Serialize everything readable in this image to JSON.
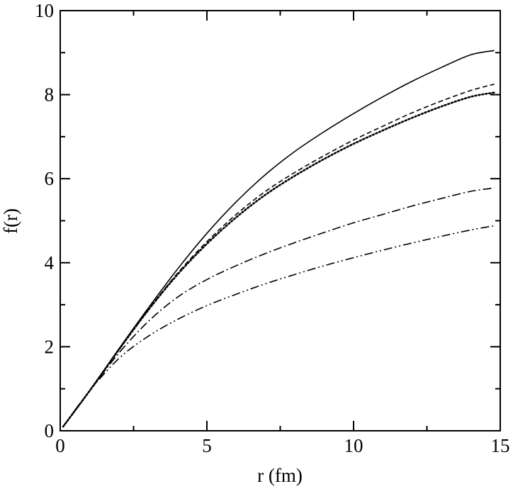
{
  "chart_data": {
    "type": "line",
    "title": "",
    "xlabel": "r (fm)",
    "ylabel": "f(r)",
    "xlim": [
      0,
      15
    ],
    "ylim": [
      0,
      10
    ],
    "x_ticks": [
      0,
      5,
      10,
      15
    ],
    "y_ticks": [
      0,
      2,
      4,
      6,
      8,
      10
    ],
    "x_tick_labels": [
      "0",
      "5",
      "10",
      "15"
    ],
    "y_tick_labels": [
      "0",
      "2",
      "4",
      "6",
      "8",
      "10"
    ],
    "grid": false,
    "legend": "none",
    "series": [
      {
        "style": "solid",
        "color": "#000000",
        "x": [
          0.1,
          1,
          2,
          3,
          4,
          5,
          6,
          7,
          8,
          9,
          10,
          11,
          12,
          13,
          14,
          14.8
        ],
        "y": [
          0.1,
          0.95,
          1.95,
          2.92,
          3.85,
          4.7,
          5.45,
          6.1,
          6.65,
          7.12,
          7.55,
          7.95,
          8.32,
          8.65,
          8.95,
          9.05
        ]
      },
      {
        "style": "dashed",
        "color": "#000000",
        "x": [
          0.1,
          1,
          2,
          3,
          4,
          5,
          6,
          7,
          8,
          9,
          10,
          11,
          12,
          13,
          14,
          14.8
        ],
        "y": [
          0.1,
          0.95,
          1.93,
          2.88,
          3.75,
          4.5,
          5.15,
          5.7,
          6.15,
          6.55,
          6.92,
          7.25,
          7.57,
          7.85,
          8.1,
          8.25
        ]
      },
      {
        "style": "dotted",
        "color": "#000000",
        "x": [
          0.1,
          1,
          2,
          3,
          4,
          5,
          6,
          7,
          8,
          9,
          10,
          11,
          12,
          13,
          14,
          14.8
        ],
        "y": [
          0.1,
          0.95,
          1.93,
          2.87,
          3.72,
          4.45,
          5.08,
          5.62,
          6.07,
          6.47,
          6.83,
          7.15,
          7.45,
          7.72,
          7.95,
          8.05
        ]
      },
      {
        "style": "dash-dot",
        "color": "#000000",
        "x": [
          0.1,
          1,
          2,
          3,
          4,
          5,
          6,
          7,
          8,
          9,
          10,
          11,
          12,
          13,
          14,
          14.8
        ],
        "y": [
          0.1,
          0.95,
          1.85,
          2.6,
          3.18,
          3.6,
          3.93,
          4.22,
          4.48,
          4.72,
          4.95,
          5.15,
          5.35,
          5.53,
          5.7,
          5.78
        ]
      },
      {
        "style": "dash-dot-dot",
        "color": "#000000",
        "x": [
          0.1,
          1,
          2,
          3,
          4,
          5,
          6,
          7,
          8,
          9,
          10,
          11,
          12,
          13,
          14,
          14.8
        ],
        "y": [
          0.1,
          0.95,
          1.72,
          2.25,
          2.65,
          2.98,
          3.25,
          3.5,
          3.72,
          3.93,
          4.12,
          4.3,
          4.47,
          4.63,
          4.78,
          4.88
        ]
      }
    ]
  }
}
